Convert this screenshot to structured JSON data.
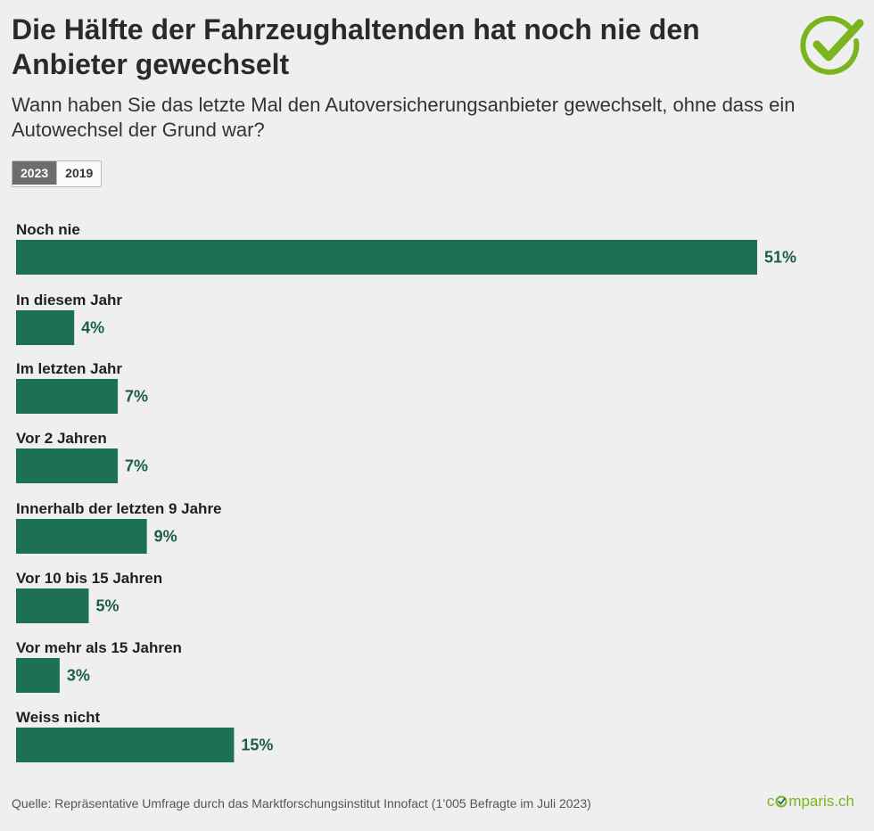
{
  "header": {
    "title": "Die Hälfte der Fahrzeughaltenden hat noch nie den Anbieter gewechselt",
    "subtitle": "Wann haben Sie das letzte Mal den Autoversicherungsanbieter gewechselt, ohne dass ein Autowechsel der Grund war?"
  },
  "tabs": [
    {
      "label": "2023",
      "active": true
    },
    {
      "label": "2019",
      "active": false
    }
  ],
  "colors": {
    "bar": "#1c7153",
    "value_label": "#1c5e45",
    "brand": "#7ab51d"
  },
  "chart_data": {
    "type": "bar",
    "orientation": "horizontal",
    "categories": [
      "Noch nie",
      "In diesem Jahr",
      "Im letzten Jahr",
      "Vor 2 Jahren",
      "Innerhalb der letzten 9 Jahre",
      "Vor 10 bis 15 Jahren",
      "Vor mehr als 15 Jahren",
      "Weiss nicht"
    ],
    "values": [
      51,
      4,
      7,
      7,
      9,
      5,
      3,
      15
    ],
    "value_labels": [
      "51%",
      "4%",
      "7%",
      "7%",
      "9%",
      "5%",
      "3%",
      "15%"
    ],
    "unit": "%",
    "title": "",
    "xlabel": "",
    "ylabel": "",
    "xlim": [
      0,
      55
    ],
    "grid": false,
    "legend": "none"
  },
  "footer": {
    "source": "Quelle: Repräsentative Umfrage durch das Marktforschungsinstitut Innofact (1’005 Befragte im Juli 2023)",
    "brand_prefix": "c",
    "brand_suffix": "mparis.ch"
  },
  "icons": {
    "logo": "check-mark-circle-icon",
    "brand_glyph": "check-circle-icon"
  }
}
